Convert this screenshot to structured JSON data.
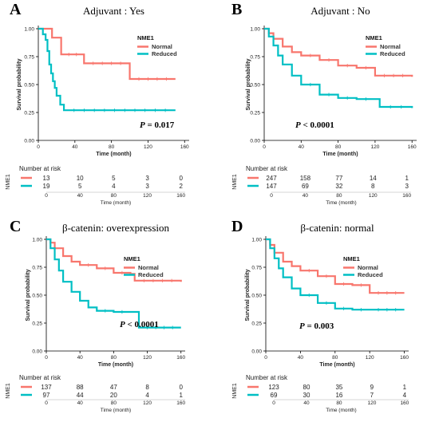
{
  "colors": {
    "normal": "#F8766D",
    "reduced": "#00BFC4"
  },
  "chart_data": [
    {
      "type": "line",
      "panel_label": "A",
      "title": "Adjuvant : Yes",
      "xlabel": "Time (month)",
      "ylabel": "Survival probability",
      "xlim": [
        0,
        165
      ],
      "ylim": [
        0,
        1
      ],
      "xticks": [
        "0",
        "40",
        "80",
        "120",
        "160"
      ],
      "yticks": [
        "0.00",
        "0.25",
        "0.50",
        "0.75",
        "1.00"
      ],
      "legend_title": "NME1",
      "p_label": "P",
      "p_value": "= 0.017",
      "series": [
        {
          "name": "Normal",
          "x": [
            0,
            9,
            15,
            25,
            50,
            100,
            150
          ],
          "y": [
            1.0,
            1.0,
            0.92,
            0.77,
            0.69,
            0.55,
            0.55
          ]
        },
        {
          "name": "Reduced",
          "x": [
            0,
            5,
            8,
            10,
            12,
            14,
            16,
            18,
            20,
            24,
            28,
            150
          ],
          "y": [
            1.0,
            0.95,
            0.9,
            0.8,
            0.68,
            0.6,
            0.53,
            0.47,
            0.4,
            0.32,
            0.27,
            0.27
          ]
        }
      ],
      "risk_table": {
        "title": "Number at risk",
        "ylabel": "NME1",
        "xlabel": "Time (month)",
        "xticks": [
          "0",
          "40",
          "80",
          "120",
          "160"
        ],
        "rows": [
          {
            "name": "Normal",
            "values": [
              "13",
              "10",
              "5",
              "3",
              "0"
            ]
          },
          {
            "name": "Reduced",
            "values": [
              "19",
              "5",
              "4",
              "3",
              "2"
            ]
          }
        ]
      }
    },
    {
      "type": "line",
      "panel_label": "B",
      "title": "Adjuvant : No",
      "xlabel": "Time (month)",
      "ylabel": "Survival probability",
      "xlim": [
        0,
        165
      ],
      "ylim": [
        0,
        1
      ],
      "xticks": [
        "0",
        "40",
        "80",
        "120",
        "160"
      ],
      "yticks": [
        "0.00",
        "0.25",
        "0.50",
        "0.75",
        "1.00"
      ],
      "legend_title": "NME1",
      "p_label": "P",
      "p_value": "< 0.0001",
      "series": [
        {
          "name": "Normal",
          "x": [
            0,
            5,
            10,
            20,
            30,
            40,
            60,
            80,
            100,
            120,
            160
          ],
          "y": [
            1.0,
            0.96,
            0.91,
            0.84,
            0.79,
            0.76,
            0.72,
            0.67,
            0.65,
            0.58,
            0.57
          ]
        },
        {
          "name": "Reduced",
          "x": [
            0,
            5,
            10,
            15,
            20,
            30,
            40,
            60,
            80,
            100,
            120,
            125,
            160
          ],
          "y": [
            1.0,
            0.93,
            0.85,
            0.76,
            0.68,
            0.58,
            0.5,
            0.41,
            0.38,
            0.37,
            0.37,
            0.3,
            0.29
          ]
        }
      ],
      "risk_table": {
        "title": "Number at risk",
        "ylabel": "NME1",
        "xlabel": "Time (month)",
        "xticks": [
          "0",
          "40",
          "80",
          "120",
          "160"
        ],
        "rows": [
          {
            "name": "Normal",
            "values": [
              "247",
              "158",
              "77",
              "14",
              "1"
            ]
          },
          {
            "name": "Reduced",
            "values": [
              "147",
              "69",
              "32",
              "8",
              "3"
            ]
          }
        ]
      }
    },
    {
      "type": "line",
      "panel_label": "C",
      "title": "β-catenin: overexpression",
      "xlabel": "Time (month)",
      "ylabel": "Survival probability",
      "xlim": [
        0,
        165
      ],
      "ylim": [
        0,
        1
      ],
      "xticks": [
        "0",
        "40",
        "80",
        "120",
        "160"
      ],
      "yticks": [
        "0.00",
        "0.25",
        "0.50",
        "0.75",
        "1.00"
      ],
      "legend_title": "NME1",
      "p_label": "P",
      "p_value": "< 0.0001",
      "series": [
        {
          "name": "Normal",
          "x": [
            0,
            5,
            10,
            20,
            30,
            40,
            60,
            80,
            100,
            105,
            160
          ],
          "y": [
            1.0,
            0.97,
            0.92,
            0.85,
            0.8,
            0.77,
            0.74,
            0.7,
            0.69,
            0.63,
            0.62
          ]
        },
        {
          "name": "Reduced",
          "x": [
            0,
            5,
            10,
            15,
            20,
            30,
            40,
            50,
            60,
            80,
            100,
            110,
            160
          ],
          "y": [
            1.0,
            0.92,
            0.82,
            0.72,
            0.62,
            0.53,
            0.45,
            0.39,
            0.36,
            0.35,
            0.35,
            0.21,
            0.21
          ]
        }
      ],
      "risk_table": {
        "title": "Number at risk",
        "ylabel": "NME1",
        "xlabel": "Time (month)",
        "xticks": [
          "0",
          "40",
          "80",
          "120",
          "160"
        ],
        "rows": [
          {
            "name": "Normal",
            "values": [
              "137",
              "88",
              "47",
              "8",
              "0"
            ]
          },
          {
            "name": "Reduced",
            "values": [
              "97",
              "44",
              "20",
              "4",
              "1"
            ]
          }
        ]
      }
    },
    {
      "type": "line",
      "panel_label": "D",
      "title": "β-catenin: normal",
      "xlabel": "Time (month)",
      "ylabel": "Survival probability",
      "xlim": [
        0,
        165
      ],
      "ylim": [
        0,
        1
      ],
      "xticks": [
        "0",
        "40",
        "80",
        "120",
        "160"
      ],
      "yticks": [
        "0.00",
        "0.25",
        "0.50",
        "0.75",
        "1.00"
      ],
      "legend_title": "NME1",
      "p_label": "P",
      "p_value": "= 0.003",
      "series": [
        {
          "name": "Normal",
          "x": [
            0,
            5,
            10,
            20,
            30,
            40,
            60,
            80,
            100,
            120,
            160
          ],
          "y": [
            1.0,
            0.95,
            0.88,
            0.8,
            0.76,
            0.72,
            0.67,
            0.6,
            0.59,
            0.52,
            0.52
          ]
        },
        {
          "name": "Reduced",
          "x": [
            0,
            5,
            10,
            15,
            20,
            30,
            40,
            60,
            80,
            100,
            120,
            160
          ],
          "y": [
            1.0,
            0.92,
            0.83,
            0.74,
            0.66,
            0.56,
            0.5,
            0.43,
            0.38,
            0.37,
            0.37,
            0.37
          ]
        }
      ],
      "risk_table": {
        "title": "Number at risk",
        "ylabel": "NME1",
        "xlabel": "Time (month)",
        "xticks": [
          "0",
          "40",
          "80",
          "120",
          "160"
        ],
        "rows": [
          {
            "name": "Normal",
            "values": [
              "123",
              "80",
              "35",
              "9",
              "1"
            ]
          },
          {
            "name": "Reduced",
            "values": [
              "69",
              "30",
              "16",
              "7",
              "4"
            ]
          }
        ]
      }
    }
  ]
}
